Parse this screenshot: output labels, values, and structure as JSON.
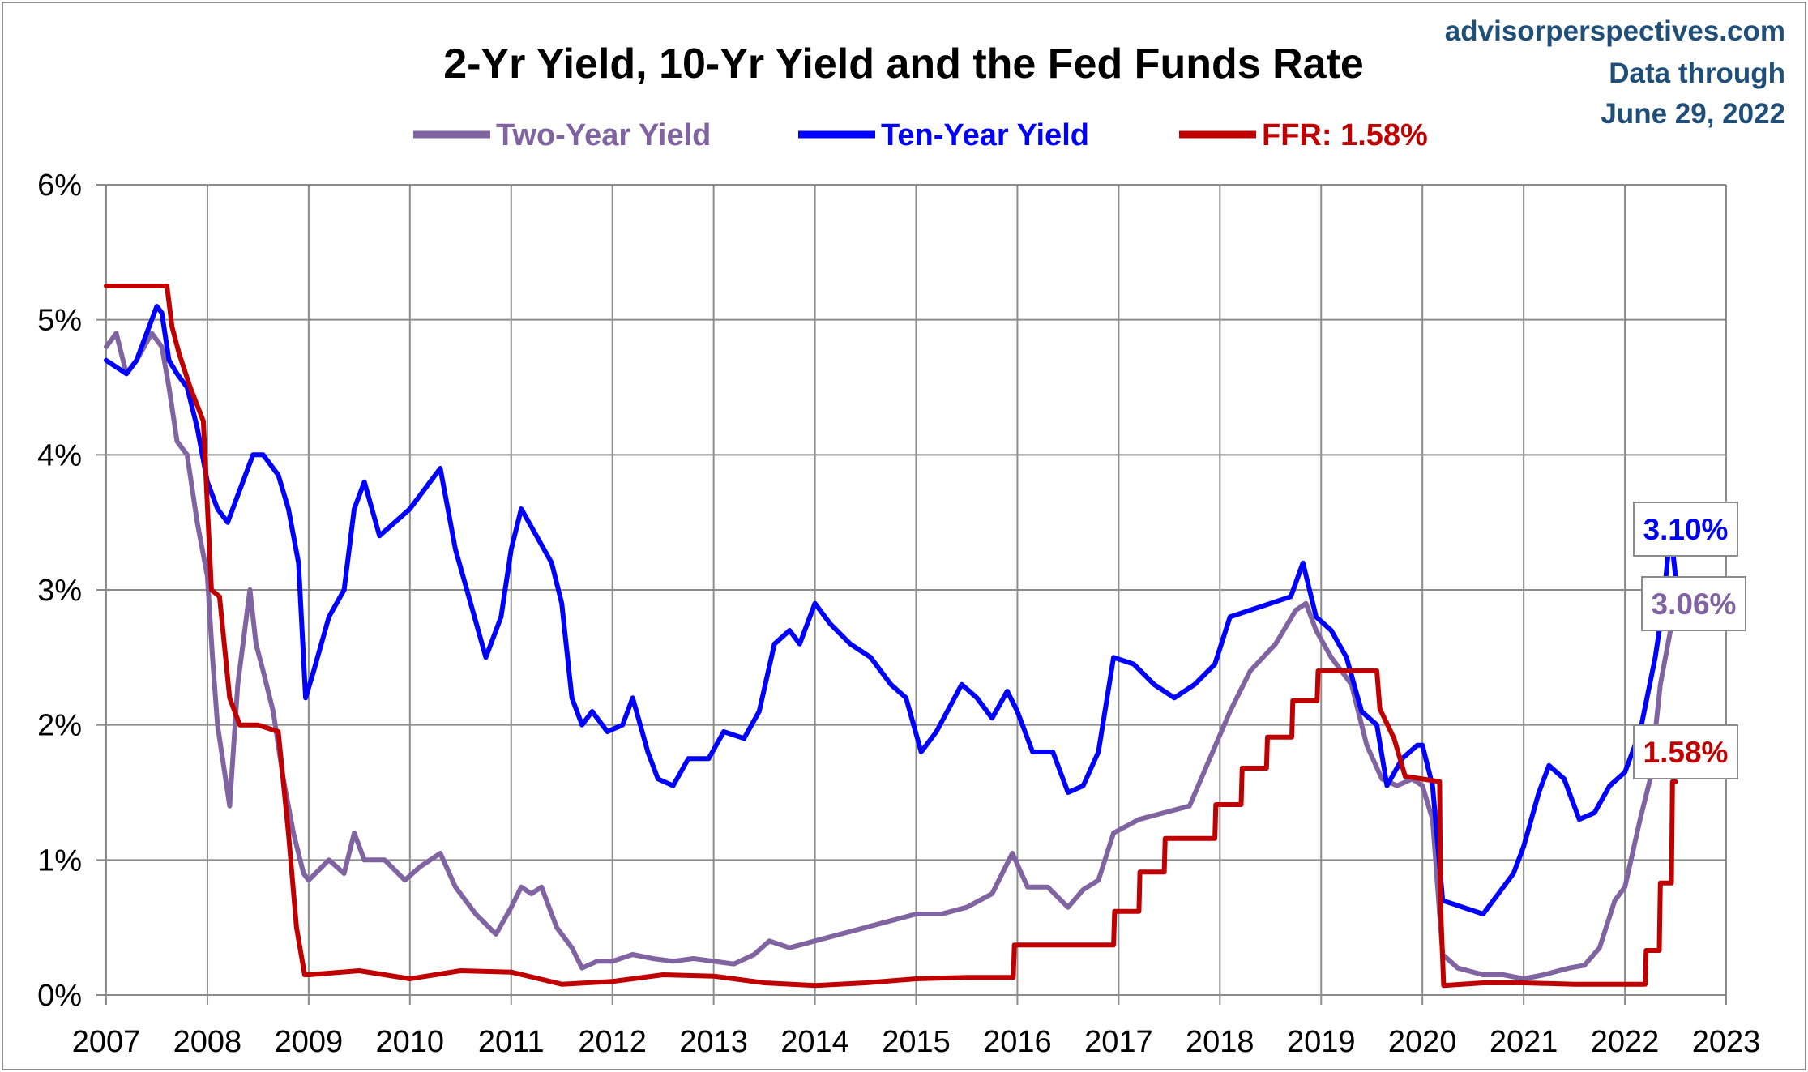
{
  "chart_data": {
    "type": "line",
    "title": "2-Yr Yield, 10-Yr Yield and the Fed Funds Rate",
    "source_lines": [
      "advisorperspectives.com",
      "Data through",
      "June 29, 2022"
    ],
    "xlim": [
      2007,
      2023
    ],
    "ylim": [
      0,
      6
    ],
    "x_tick_labels": [
      "2007",
      "2008",
      "2009",
      "2010",
      "2011",
      "2012",
      "2013",
      "2014",
      "2015",
      "2016",
      "2017",
      "2018",
      "2019",
      "2020",
      "2021",
      "2022",
      "2023"
    ],
    "y_tick_labels": [
      "0%",
      "1%",
      "2%",
      "3%",
      "4%",
      "5%",
      "6%"
    ],
    "grid": true,
    "legend_position": "top",
    "series": [
      {
        "name": "Two-Year Yield",
        "color": "#8064a2",
        "end_label": "3.06%",
        "points": [
          [
            2007.0,
            4.8
          ],
          [
            2007.1,
            4.9
          ],
          [
            2007.2,
            4.6
          ],
          [
            2007.3,
            4.7
          ],
          [
            2007.45,
            4.9
          ],
          [
            2007.55,
            4.8
          ],
          [
            2007.62,
            4.5
          ],
          [
            2007.7,
            4.1
          ],
          [
            2007.8,
            4.0
          ],
          [
            2007.9,
            3.5
          ],
          [
            2008.0,
            3.1
          ],
          [
            2008.05,
            2.5
          ],
          [
            2008.1,
            2.0
          ],
          [
            2008.18,
            1.6
          ],
          [
            2008.22,
            1.4
          ],
          [
            2008.3,
            2.3
          ],
          [
            2008.42,
            3.0
          ],
          [
            2008.48,
            2.6
          ],
          [
            2008.55,
            2.4
          ],
          [
            2008.65,
            2.1
          ],
          [
            2008.75,
            1.6
          ],
          [
            2008.85,
            1.2
          ],
          [
            2008.95,
            0.9
          ],
          [
            2009.0,
            0.85
          ],
          [
            2009.2,
            1.0
          ],
          [
            2009.35,
            0.9
          ],
          [
            2009.45,
            1.2
          ],
          [
            2009.55,
            1.0
          ],
          [
            2009.75,
            1.0
          ],
          [
            2009.95,
            0.85
          ],
          [
            2010.1,
            0.95
          ],
          [
            2010.3,
            1.05
          ],
          [
            2010.45,
            0.8
          ],
          [
            2010.65,
            0.6
          ],
          [
            2010.85,
            0.45
          ],
          [
            2011.0,
            0.65
          ],
          [
            2011.1,
            0.8
          ],
          [
            2011.2,
            0.75
          ],
          [
            2011.3,
            0.8
          ],
          [
            2011.45,
            0.5
          ],
          [
            2011.6,
            0.35
          ],
          [
            2011.7,
            0.2
          ],
          [
            2011.85,
            0.25
          ],
          [
            2012.0,
            0.25
          ],
          [
            2012.2,
            0.3
          ],
          [
            2012.4,
            0.27
          ],
          [
            2012.6,
            0.25
          ],
          [
            2012.8,
            0.27
          ],
          [
            2013.0,
            0.25
          ],
          [
            2013.2,
            0.23
          ],
          [
            2013.4,
            0.3
          ],
          [
            2013.55,
            0.4
          ],
          [
            2013.75,
            0.35
          ],
          [
            2014.0,
            0.4
          ],
          [
            2014.25,
            0.45
          ],
          [
            2014.5,
            0.5
          ],
          [
            2014.75,
            0.55
          ],
          [
            2015.0,
            0.6
          ],
          [
            2015.25,
            0.6
          ],
          [
            2015.5,
            0.65
          ],
          [
            2015.75,
            0.75
          ],
          [
            2015.95,
            1.05
          ],
          [
            2016.1,
            0.8
          ],
          [
            2016.3,
            0.8
          ],
          [
            2016.5,
            0.65
          ],
          [
            2016.65,
            0.78
          ],
          [
            2016.8,
            0.85
          ],
          [
            2016.95,
            1.2
          ],
          [
            2017.2,
            1.3
          ],
          [
            2017.45,
            1.35
          ],
          [
            2017.7,
            1.4
          ],
          [
            2017.9,
            1.75
          ],
          [
            2018.1,
            2.1
          ],
          [
            2018.3,
            2.4
          ],
          [
            2018.55,
            2.6
          ],
          [
            2018.75,
            2.85
          ],
          [
            2018.85,
            2.9
          ],
          [
            2018.95,
            2.7
          ],
          [
            2019.1,
            2.5
          ],
          [
            2019.3,
            2.3
          ],
          [
            2019.45,
            1.85
          ],
          [
            2019.6,
            1.6
          ],
          [
            2019.75,
            1.55
          ],
          [
            2019.9,
            1.6
          ],
          [
            2020.0,
            1.55
          ],
          [
            2020.1,
            1.3
          ],
          [
            2020.2,
            0.3
          ],
          [
            2020.35,
            0.2
          ],
          [
            2020.6,
            0.15
          ],
          [
            2020.8,
            0.15
          ],
          [
            2021.0,
            0.12
          ],
          [
            2021.2,
            0.15
          ],
          [
            2021.45,
            0.2
          ],
          [
            2021.6,
            0.22
          ],
          [
            2021.75,
            0.35
          ],
          [
            2021.9,
            0.7
          ],
          [
            2022.0,
            0.8
          ],
          [
            2022.15,
            1.3
          ],
          [
            2022.25,
            1.6
          ],
          [
            2022.35,
            2.3
          ],
          [
            2022.45,
            2.7
          ],
          [
            2022.5,
            3.06
          ]
        ]
      },
      {
        "name": "Ten-Year Yield",
        "color": "#0000ff",
        "end_label": "3.10%",
        "points": [
          [
            2007.0,
            4.7
          ],
          [
            2007.1,
            4.65
          ],
          [
            2007.2,
            4.6
          ],
          [
            2007.3,
            4.7
          ],
          [
            2007.4,
            4.9
          ],
          [
            2007.5,
            5.1
          ],
          [
            2007.55,
            5.05
          ],
          [
            2007.62,
            4.7
          ],
          [
            2007.7,
            4.6
          ],
          [
            2007.8,
            4.5
          ],
          [
            2007.9,
            4.2
          ],
          [
            2008.0,
            3.8
          ],
          [
            2008.1,
            3.6
          ],
          [
            2008.2,
            3.5
          ],
          [
            2008.3,
            3.7
          ],
          [
            2008.45,
            4.0
          ],
          [
            2008.55,
            4.0
          ],
          [
            2008.7,
            3.85
          ],
          [
            2008.8,
            3.6
          ],
          [
            2008.9,
            3.2
          ],
          [
            2008.97,
            2.2
          ],
          [
            2009.05,
            2.4
          ],
          [
            2009.2,
            2.8
          ],
          [
            2009.35,
            3.0
          ],
          [
            2009.45,
            3.6
          ],
          [
            2009.55,
            3.8
          ],
          [
            2009.7,
            3.4
          ],
          [
            2009.85,
            3.5
          ],
          [
            2010.0,
            3.6
          ],
          [
            2010.1,
            3.7
          ],
          [
            2010.3,
            3.9
          ],
          [
            2010.45,
            3.3
          ],
          [
            2010.6,
            2.9
          ],
          [
            2010.75,
            2.5
          ],
          [
            2010.9,
            2.8
          ],
          [
            2011.0,
            3.3
          ],
          [
            2011.1,
            3.6
          ],
          [
            2011.25,
            3.4
          ],
          [
            2011.4,
            3.2
          ],
          [
            2011.5,
            2.9
          ],
          [
            2011.6,
            2.2
          ],
          [
            2011.7,
            2.0
          ],
          [
            2011.8,
            2.1
          ],
          [
            2011.95,
            1.95
          ],
          [
            2012.1,
            2.0
          ],
          [
            2012.2,
            2.2
          ],
          [
            2012.35,
            1.8
          ],
          [
            2012.45,
            1.6
          ],
          [
            2012.6,
            1.55
          ],
          [
            2012.75,
            1.75
          ],
          [
            2012.95,
            1.75
          ],
          [
            2013.1,
            1.95
          ],
          [
            2013.3,
            1.9
          ],
          [
            2013.45,
            2.1
          ],
          [
            2013.6,
            2.6
          ],
          [
            2013.75,
            2.7
          ],
          [
            2013.85,
            2.6
          ],
          [
            2014.0,
            2.9
          ],
          [
            2014.15,
            2.75
          ],
          [
            2014.35,
            2.6
          ],
          [
            2014.55,
            2.5
          ],
          [
            2014.75,
            2.3
          ],
          [
            2014.9,
            2.2
          ],
          [
            2015.05,
            1.8
          ],
          [
            2015.2,
            1.95
          ],
          [
            2015.45,
            2.3
          ],
          [
            2015.6,
            2.2
          ],
          [
            2015.75,
            2.05
          ],
          [
            2015.9,
            2.25
          ],
          [
            2016.0,
            2.1
          ],
          [
            2016.15,
            1.8
          ],
          [
            2016.35,
            1.8
          ],
          [
            2016.5,
            1.5
          ],
          [
            2016.65,
            1.55
          ],
          [
            2016.8,
            1.8
          ],
          [
            2016.95,
            2.5
          ],
          [
            2017.15,
            2.45
          ],
          [
            2017.35,
            2.3
          ],
          [
            2017.55,
            2.2
          ],
          [
            2017.75,
            2.3
          ],
          [
            2017.95,
            2.45
          ],
          [
            2018.1,
            2.8
          ],
          [
            2018.3,
            2.85
          ],
          [
            2018.5,
            2.9
          ],
          [
            2018.7,
            2.95
          ],
          [
            2018.82,
            3.2
          ],
          [
            2018.95,
            2.8
          ],
          [
            2019.1,
            2.7
          ],
          [
            2019.25,
            2.5
          ],
          [
            2019.4,
            2.1
          ],
          [
            2019.55,
            2.0
          ],
          [
            2019.65,
            1.55
          ],
          [
            2019.8,
            1.75
          ],
          [
            2019.95,
            1.85
          ],
          [
            2020.0,
            1.85
          ],
          [
            2020.1,
            1.55
          ],
          [
            2020.2,
            0.7
          ],
          [
            2020.4,
            0.65
          ],
          [
            2020.6,
            0.6
          ],
          [
            2020.75,
            0.75
          ],
          [
            2020.9,
            0.9
          ],
          [
            2021.0,
            1.1
          ],
          [
            2021.15,
            1.5
          ],
          [
            2021.25,
            1.7
          ],
          [
            2021.4,
            1.6
          ],
          [
            2021.55,
            1.3
          ],
          [
            2021.7,
            1.35
          ],
          [
            2021.85,
            1.55
          ],
          [
            2022.0,
            1.65
          ],
          [
            2022.15,
            1.95
          ],
          [
            2022.3,
            2.5
          ],
          [
            2022.38,
            2.9
          ],
          [
            2022.45,
            3.45
          ],
          [
            2022.5,
            3.1
          ]
        ]
      },
      {
        "name": "FFR: 1.58%",
        "color": "#c00000",
        "end_label": "1.58%",
        "points": [
          [
            2007.0,
            5.25
          ],
          [
            2007.6,
            5.25
          ],
          [
            2007.65,
            4.95
          ],
          [
            2007.72,
            4.75
          ],
          [
            2007.83,
            4.5
          ],
          [
            2007.96,
            4.25
          ],
          [
            2008.04,
            3.0
          ],
          [
            2008.12,
            2.95
          ],
          [
            2008.22,
            2.2
          ],
          [
            2008.32,
            2.0
          ],
          [
            2008.5,
            2.0
          ],
          [
            2008.7,
            1.95
          ],
          [
            2008.8,
            1.2
          ],
          [
            2008.88,
            0.5
          ],
          [
            2008.96,
            0.15
          ],
          [
            2009.0,
            0.15
          ],
          [
            2009.5,
            0.18
          ],
          [
            2010.0,
            0.12
          ],
          [
            2010.5,
            0.18
          ],
          [
            2011.0,
            0.17
          ],
          [
            2011.5,
            0.08
          ],
          [
            2012.0,
            0.1
          ],
          [
            2012.5,
            0.15
          ],
          [
            2013.0,
            0.14
          ],
          [
            2013.5,
            0.09
          ],
          [
            2014.0,
            0.07
          ],
          [
            2014.5,
            0.09
          ],
          [
            2015.0,
            0.12
          ],
          [
            2015.5,
            0.13
          ],
          [
            2015.96,
            0.13
          ],
          [
            2015.97,
            0.37
          ],
          [
            2016.95,
            0.37
          ],
          [
            2016.96,
            0.62
          ],
          [
            2017.2,
            0.62
          ],
          [
            2017.21,
            0.91
          ],
          [
            2017.45,
            0.91
          ],
          [
            2017.46,
            1.16
          ],
          [
            2017.95,
            1.16
          ],
          [
            2017.96,
            1.41
          ],
          [
            2018.21,
            1.41
          ],
          [
            2018.22,
            1.68
          ],
          [
            2018.46,
            1.68
          ],
          [
            2018.47,
            1.91
          ],
          [
            2018.71,
            1.91
          ],
          [
            2018.72,
            2.18
          ],
          [
            2018.96,
            2.18
          ],
          [
            2018.97,
            2.4
          ],
          [
            2019.55,
            2.4
          ],
          [
            2019.58,
            2.12
          ],
          [
            2019.72,
            1.9
          ],
          [
            2019.83,
            1.62
          ],
          [
            2020.17,
            1.58
          ],
          [
            2020.18,
            0.65
          ],
          [
            2020.21,
            0.07
          ],
          [
            2020.6,
            0.09
          ],
          [
            2021.0,
            0.09
          ],
          [
            2021.5,
            0.08
          ],
          [
            2022.0,
            0.08
          ],
          [
            2022.2,
            0.08
          ],
          [
            2022.21,
            0.33
          ],
          [
            2022.34,
            0.33
          ],
          [
            2022.35,
            0.83
          ],
          [
            2022.46,
            0.83
          ],
          [
            2022.47,
            1.58
          ],
          [
            2022.5,
            1.58
          ]
        ]
      }
    ]
  }
}
